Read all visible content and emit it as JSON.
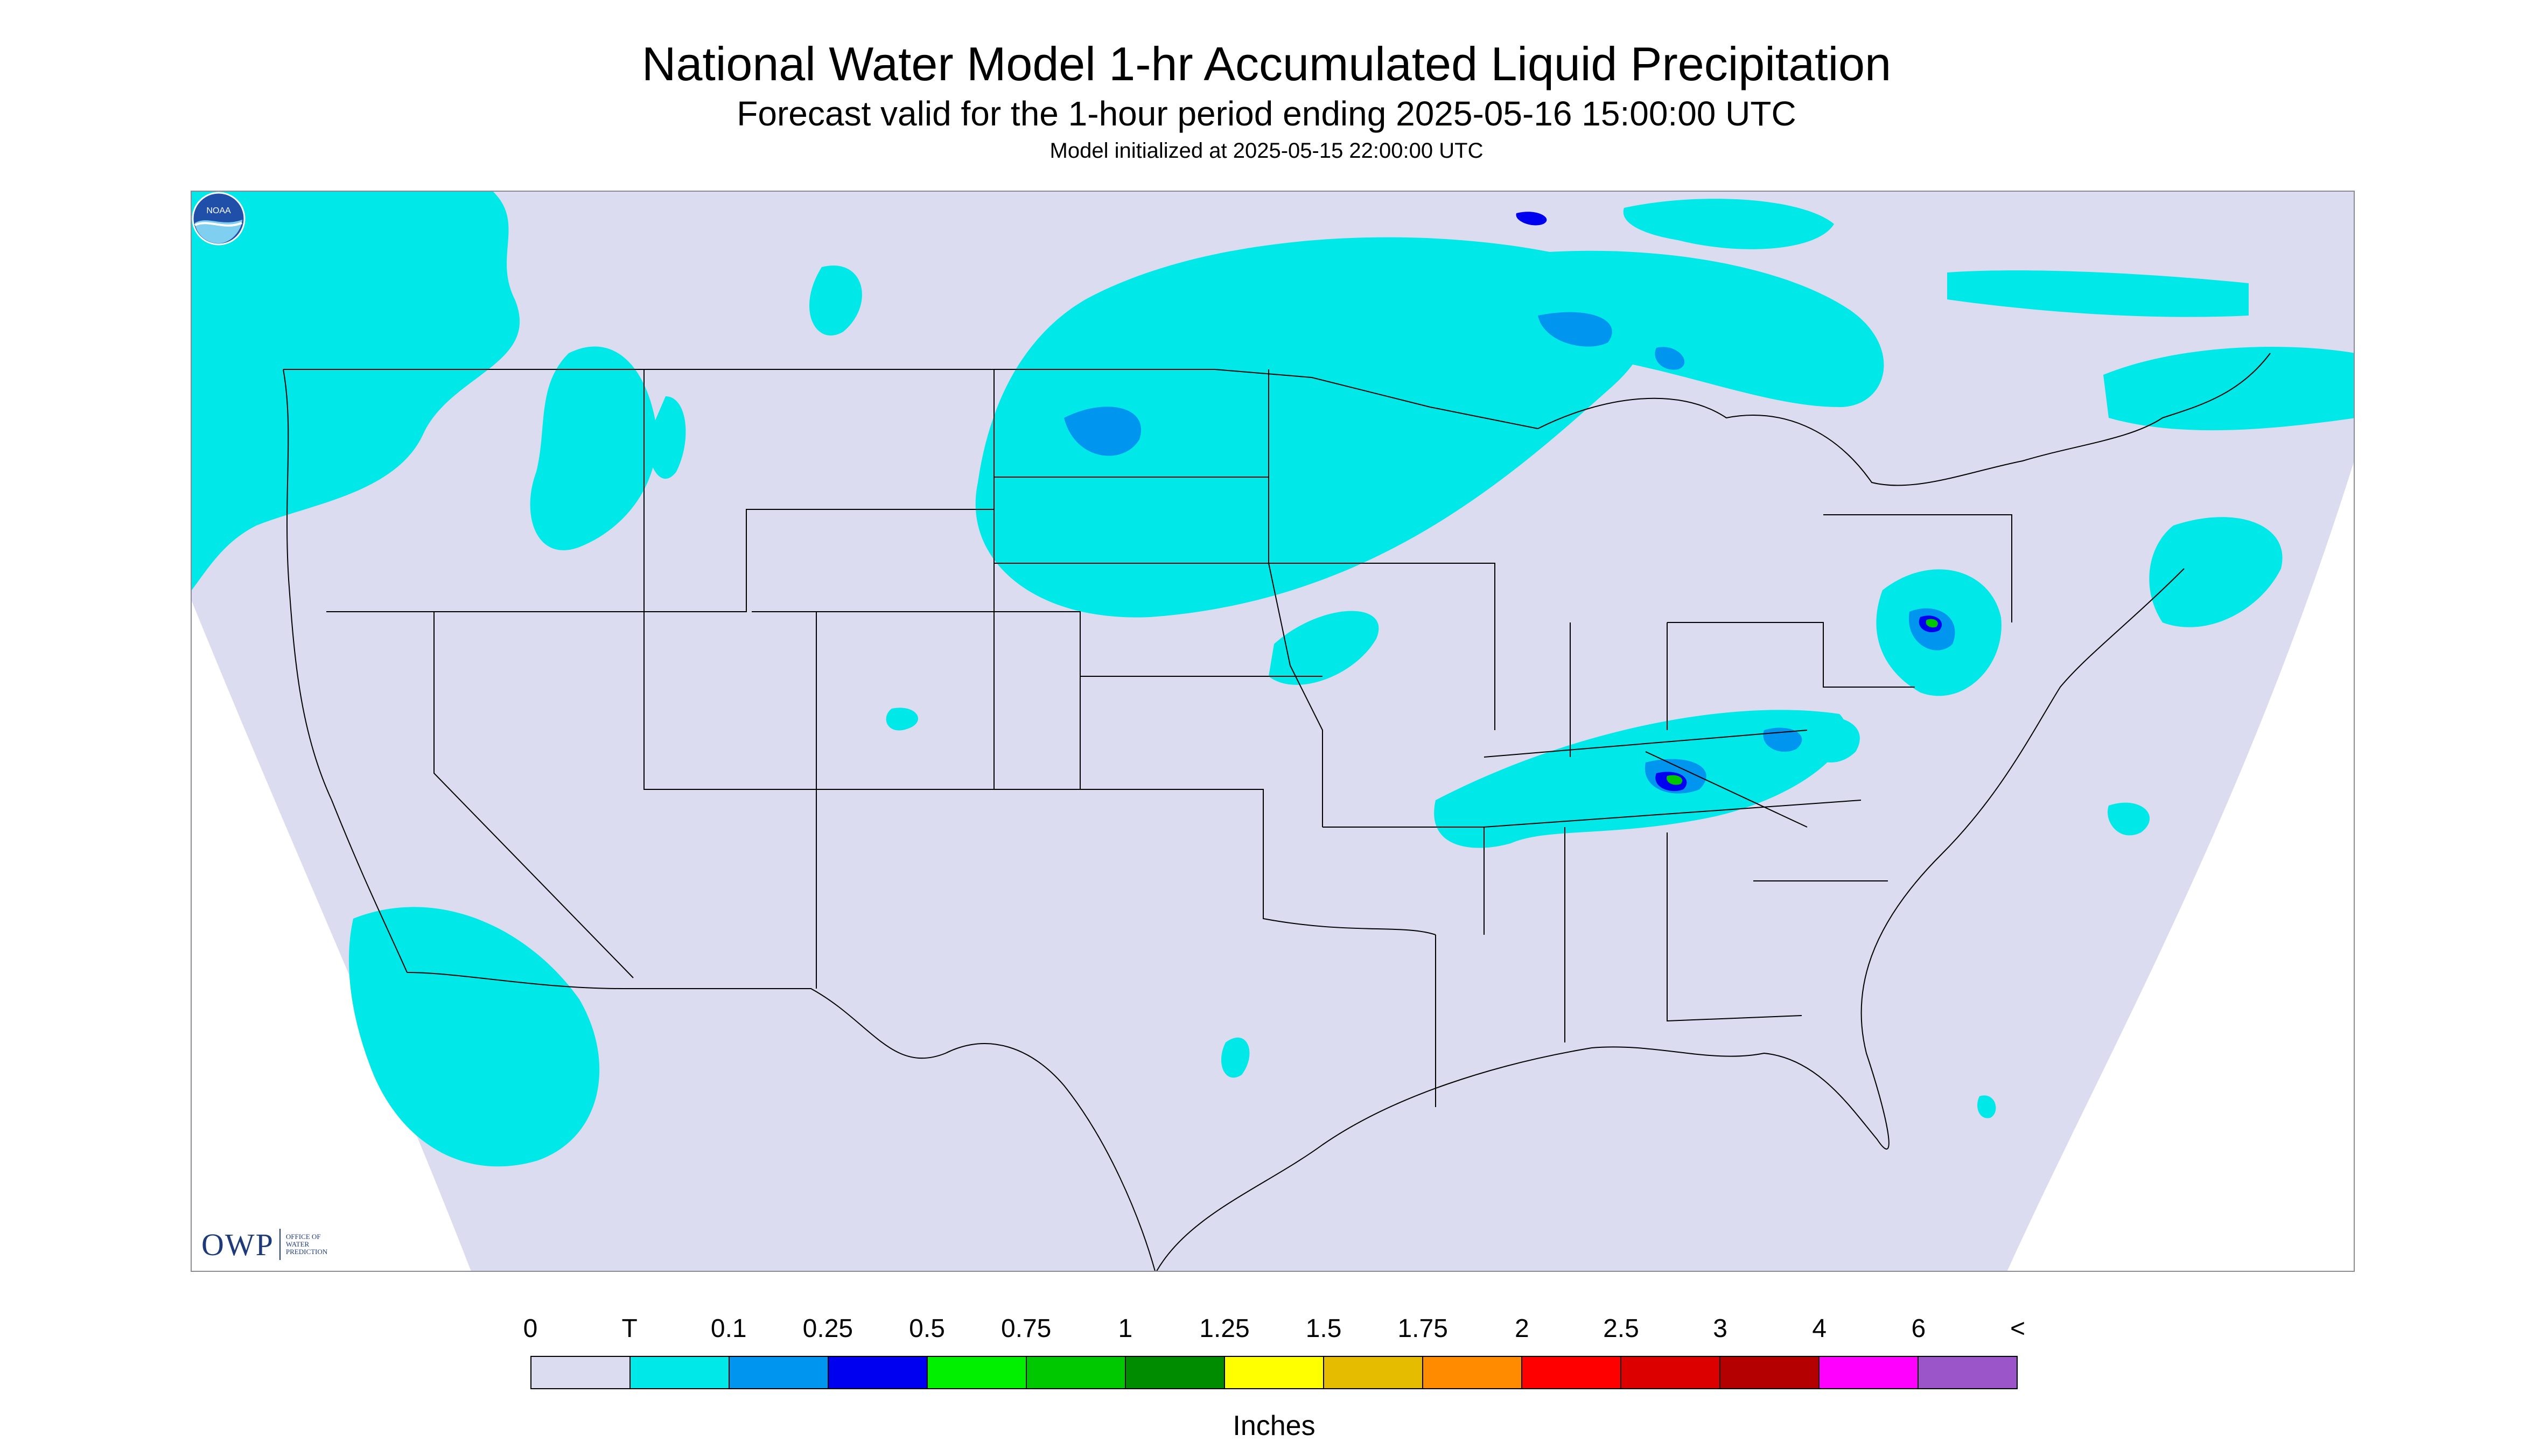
{
  "title": "National Water Model 1-hr Accumulated Liquid Precipitation",
  "subtitle": "Forecast valid for the 1-hour period ending 2025-05-16 15:00:00 UTC",
  "init_line": "Model initialized at 2025-05-15 22:00:00 UTC",
  "logos": {
    "owp_text": "OWP",
    "owp_small": [
      "OFFICE OF",
      "WATER",
      "PREDICTION"
    ],
    "noaa_text": "NOAA",
    "owp_icon": "owp-logo",
    "noaa_icon": "noaa-logo"
  },
  "legend": {
    "units": "Inches",
    "labels": [
      "0",
      "T",
      "0.1",
      "0.25",
      "0.5",
      "0.75",
      "1",
      "1.25",
      "1.5",
      "1.75",
      "2",
      "2.5",
      "3",
      "4",
      "6",
      "<"
    ],
    "colors": [
      "#dcdcf0",
      "#00e8e8",
      "#0096f0",
      "#0000f0",
      "#00f000",
      "#00c800",
      "#008c00",
      "#ffff00",
      "#e6bc00",
      "#ff8c00",
      "#ff0000",
      "#dc0000",
      "#b40000",
      "#ff00ff",
      "#9b55c8"
    ]
  },
  "map": {
    "land_color": "#dcdcf0",
    "outside_color": "#ffffff",
    "border_color": "#000000"
  }
}
